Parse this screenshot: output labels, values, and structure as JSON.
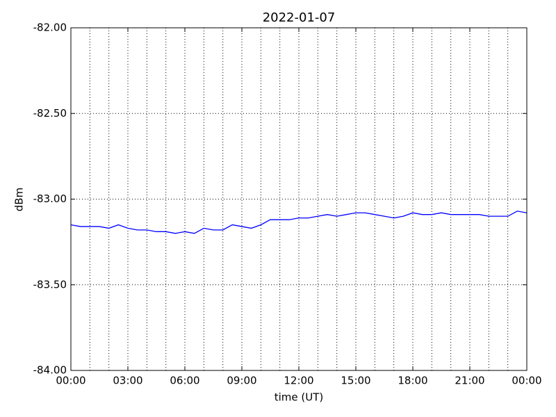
{
  "chart_data": {
    "type": "line",
    "title": "2022-01-07",
    "xlabel": "time (UT)",
    "ylabel": "dBm",
    "x": [
      0,
      0.5,
      1,
      1.5,
      2,
      2.5,
      3,
      3.5,
      4,
      4.5,
      5,
      5.5,
      6,
      6.5,
      7,
      7.5,
      8,
      8.5,
      9,
      9.5,
      10,
      10.5,
      11,
      11.5,
      12,
      12.5,
      13,
      13.5,
      14,
      14.5,
      15,
      15.5,
      16,
      16.5,
      17,
      17.5,
      18,
      18.5,
      19,
      19.5,
      20,
      20.5,
      21,
      21.5,
      22,
      22.5,
      23,
      23.5,
      24
    ],
    "values": [
      -83.15,
      -83.16,
      -83.16,
      -83.16,
      -83.17,
      -83.15,
      -83.17,
      -83.18,
      -83.18,
      -83.19,
      -83.19,
      -83.2,
      -83.19,
      -83.2,
      -83.17,
      -83.18,
      -83.18,
      -83.15,
      -83.16,
      -83.17,
      -83.15,
      -83.12,
      -83.12,
      -83.12,
      -83.11,
      -83.11,
      -83.1,
      -83.09,
      -83.1,
      -83.09,
      -83.08,
      -83.08,
      -83.09,
      -83.1,
      -83.11,
      -83.1,
      -83.08,
      -83.09,
      -83.09,
      -83.08,
      -83.09,
      -83.09,
      -83.09,
      -83.09,
      -83.1,
      -83.1,
      -83.1,
      -83.07,
      -83.08
    ],
    "color": "#0000ff",
    "xlim": [
      0,
      24
    ],
    "xticks": [
      {
        "value": 0,
        "label": "00:00"
      },
      {
        "value": 3,
        "label": "03:00"
      },
      {
        "value": 6,
        "label": "06:00"
      },
      {
        "value": 9,
        "label": "09:00"
      },
      {
        "value": 12,
        "label": "12:00"
      },
      {
        "value": 15,
        "label": "15:00"
      },
      {
        "value": 18,
        "label": "18:00"
      },
      {
        "value": 21,
        "label": "21:00"
      },
      {
        "value": 24,
        "label": "00:00"
      }
    ],
    "xminorticks": [
      1,
      2,
      4,
      5,
      7,
      8,
      10,
      11,
      13,
      14,
      16,
      17,
      19,
      20,
      22,
      23
    ],
    "ylim": [
      -84,
      -82
    ],
    "yticks": [
      {
        "value": -84,
        "label": "-84.00"
      },
      {
        "value": -83.5,
        "label": "-83.50"
      },
      {
        "value": -83,
        "label": "-83.00"
      },
      {
        "value": -82.5,
        "label": "-82.50"
      },
      {
        "value": -82,
        "label": "-82.00"
      }
    ],
    "grid": true
  }
}
